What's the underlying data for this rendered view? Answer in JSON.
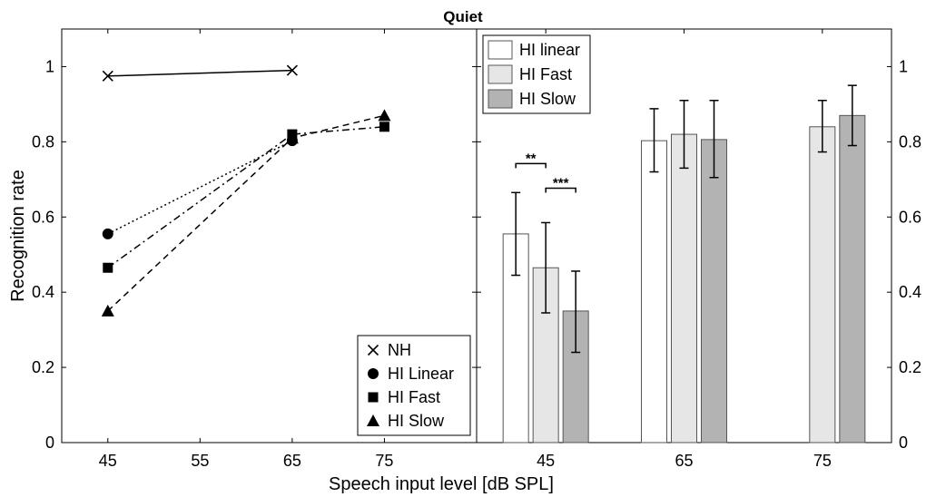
{
  "chart_data": {
    "title": "Quiet",
    "xlabel": "Speech input level [dB SPL]",
    "ylabel": "Recognition rate",
    "panels": [
      {
        "type": "line",
        "xticks": [
          45,
          55,
          65,
          75
        ],
        "xlim": [
          40,
          85
        ],
        "yticks": [
          0,
          0.2,
          0.4,
          0.6,
          0.8,
          1
        ],
        "ylim": [
          0,
          1.1
        ],
        "legend_position": "bottom-right",
        "series": [
          {
            "name": "NH",
            "marker": "x",
            "line": "solid",
            "x": [
              45,
              65
            ],
            "values": [
              0.975,
              0.99
            ]
          },
          {
            "name": "HI Linear",
            "marker": "circle",
            "line": "dotted",
            "x": [
              45,
              65
            ],
            "values": [
              0.555,
              0.803
            ]
          },
          {
            "name": "HI Fast",
            "marker": "square",
            "line": "dashdot",
            "x": [
              45,
              65,
              75
            ],
            "values": [
              0.465,
              0.82,
              0.84
            ]
          },
          {
            "name": "HI Slow",
            "marker": "triangle",
            "line": "dashed",
            "x": [
              45,
              65,
              75
            ],
            "values": [
              0.35,
              0.81,
              0.87
            ]
          }
        ]
      },
      {
        "type": "bar",
        "categories": [
          "45",
          "65",
          "75"
        ],
        "yticks": [
          0,
          0.2,
          0.4,
          0.6,
          0.8,
          1
        ],
        "ylim": [
          0,
          1.1
        ],
        "legend_position": "top-left",
        "series": [
          {
            "name": "HI linear",
            "color": "#ffffff",
            "values": [
              0.555,
              0.803,
              null
            ],
            "err_low": [
              0.445,
              0.72,
              null
            ],
            "err_high": [
              0.665,
              0.888,
              null
            ]
          },
          {
            "name": "HI Fast",
            "color": "#e6e6e6",
            "values": [
              0.465,
              0.82,
              0.84
            ],
            "err_low": [
              0.345,
              0.73,
              0.773
            ],
            "err_high": [
              0.585,
              0.91,
              0.91
            ]
          },
          {
            "name": "HI Slow",
            "color": "#b3b3b3",
            "values": [
              0.35,
              0.806,
              0.87
            ],
            "err_low": [
              0.24,
              0.705,
              0.79
            ],
            "err_high": [
              0.456,
              0.91,
              0.95
            ]
          }
        ],
        "annotations": [
          {
            "text": "**",
            "between": [
              "HI linear",
              "HI Fast"
            ],
            "category": "45"
          },
          {
            "text": "***",
            "between": [
              "HI Fast",
              "HI Slow"
            ],
            "category": "45"
          }
        ]
      }
    ]
  }
}
